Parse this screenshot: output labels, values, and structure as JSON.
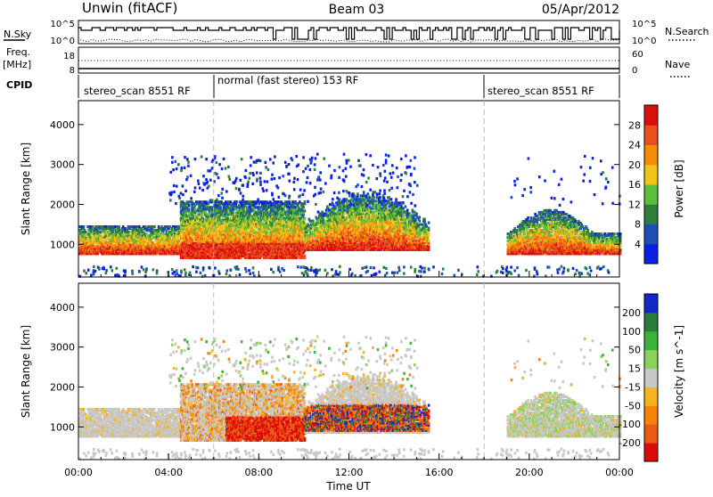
{
  "header": {
    "station": "Unwin (fitACF)",
    "beam": "Beam 03",
    "date": "05/Apr/2012"
  },
  "top_panels": {
    "nsky_label": "N.Sky",
    "nsearch_label": "N.Search",
    "freq_label": "Freq.",
    "freq_unit": "[MHz]",
    "nave_label": "Nave",
    "cpid_label": "CPID",
    "nsky_ticks": [
      "10^5",
      "10^0"
    ],
    "nsearch_ticks": [
      "10^5",
      "10^0"
    ],
    "freq_ticks": [
      "18",
      "8"
    ],
    "nave_ticks": [
      "60",
      "0"
    ],
    "cpid_segments": [
      {
        "label": "stereo_scan 8551 RF",
        "start_h": 0,
        "end_h": 6
      },
      {
        "label": "normal (fast stereo) 153 RF",
        "start_h": 6,
        "end_h": 18
      },
      {
        "label": "stereo_scan 8551 RF",
        "start_h": 18,
        "end_h": 24
      }
    ]
  },
  "chart_data": [
    {
      "type": "heatmap",
      "title": "",
      "xlabel": "Time UT",
      "ylabel": "Slant Range [km]",
      "xlim": [
        0,
        24
      ],
      "ylim": [
        180,
        4600
      ],
      "x_ticks": [
        "00:00",
        "04:00",
        "08:00",
        "12:00",
        "16:00",
        "20:00",
        "00:00"
      ],
      "y_ticks": [
        "1000",
        "2000",
        "3000",
        "4000"
      ],
      "y_tick_values": [
        1000,
        2000,
        3000,
        4000
      ],
      "colorbar": {
        "label": "Power [dB]",
        "range": [
          0,
          32
        ],
        "ticks": [
          "4",
          "8",
          "12",
          "16",
          "20",
          "24",
          "28"
        ],
        "colors": [
          "#0a1ee6",
          "#1e50b4",
          "#2e7d3c",
          "#5abf3c",
          "#f2c318",
          "#f28c0a",
          "#e8501e",
          "#dc0f0f"
        ]
      },
      "echo_bands": [
        {
          "start_h": 0.0,
          "end_h": 4.5,
          "range_km": [
            800,
            1500
          ]
        },
        {
          "start_h": 4.5,
          "end_h": 10.0,
          "range_km": [
            700,
            2100
          ]
        },
        {
          "start_h": 10.0,
          "end_h": 15.5,
          "range_km": [
            900,
            2400
          ]
        },
        {
          "start_h": 19.0,
          "end_h": 24.0,
          "range_km": [
            800,
            2000
          ]
        }
      ]
    },
    {
      "type": "heatmap",
      "title": "",
      "xlabel": "Time UT",
      "ylabel": "Slant Range [km]",
      "xlim": [
        0,
        24
      ],
      "ylim": [
        180,
        4600
      ],
      "x_ticks": [
        "00:00",
        "04:00",
        "08:00",
        "12:00",
        "16:00",
        "20:00",
        "00:00"
      ],
      "y_ticks": [
        "1000",
        "2000",
        "3000",
        "4000"
      ],
      "y_tick_values": [
        1000,
        2000,
        3000,
        4000
      ],
      "colorbar": {
        "label": "Velocity [m s^-1]",
        "ticks": [
          "200",
          "100",
          "50",
          "15",
          "-15",
          "-50",
          "-100",
          "-200"
        ],
        "colors": [
          "#1428c8",
          "#2a7d3a",
          "#3cb43c",
          "#8cd25a",
          "#c8c8c8",
          "#f5b41e",
          "#f5820a",
          "#eb5a14",
          "#dc0a0a"
        ]
      }
    }
  ]
}
